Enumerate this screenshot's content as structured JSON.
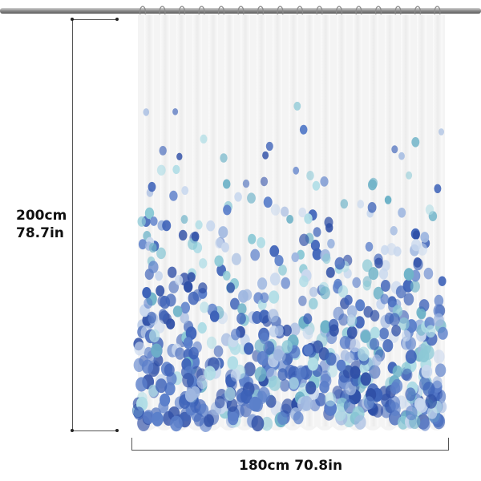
{
  "dimensions": {
    "height_cm": "200cm",
    "height_in": "78.7in",
    "width": "180cm 70.8in"
  },
  "colors": {
    "curtain_base": "#f4f4f4",
    "dot_palette": [
      "#2f4fa6",
      "#3d62b8",
      "#5b7fca",
      "#6fb3c8",
      "#8cc9d6",
      "#9fb7e0",
      "#c9d8ee",
      "#b0dde6"
    ],
    "rod": "#7a7a7a"
  },
  "icons": [
    "ruler-dimension-icon"
  ]
}
